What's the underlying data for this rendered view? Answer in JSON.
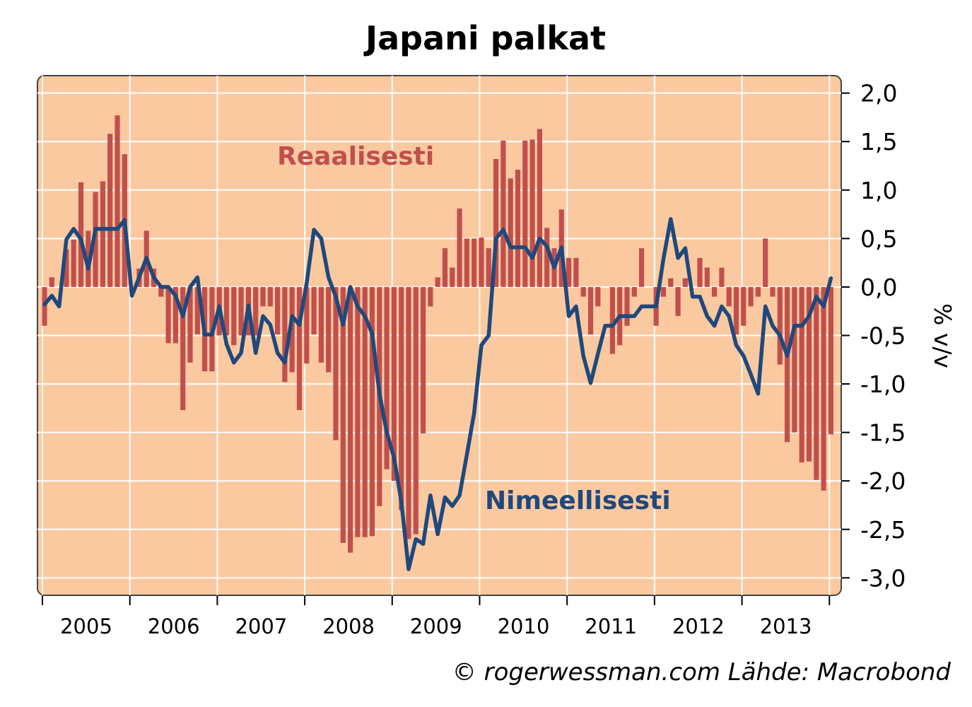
{
  "chart_data": {
    "type": "bar+line",
    "title": "Japani palkat",
    "ylabel": "% v/v",
    "xlabel": "",
    "ylim": [
      -3.18,
      2.18
    ],
    "yticks": [
      2.0,
      1.5,
      1.0,
      0.5,
      0.0,
      -0.5,
      -1.0,
      -1.5,
      -2.0,
      -2.5,
      -3.0
    ],
    "ytick_labels": [
      "2,0",
      "1,5",
      "1,0",
      "0,5",
      "0,0",
      "-0,5",
      "-1,0",
      "-1,5",
      "-2,0",
      "-2,5",
      "-3,0"
    ],
    "xtick_labels": [
      "2005",
      "2006",
      "2007",
      "2008",
      "2009",
      "2010",
      "2011",
      "2012",
      "2013"
    ],
    "grid": true,
    "x_start": "2005-01",
    "x_frequency": "monthly",
    "series": [
      {
        "name": "Reaalisesti",
        "type": "bar",
        "color": "#c0504d",
        "values": [
          -0.4,
          0.1,
          0,
          0.39,
          0.49,
          1.08,
          0.58,
          0.98,
          1.09,
          1.58,
          1.77,
          1.37,
          0,
          0.19,
          0.58,
          0.19,
          -0.1,
          -0.58,
          -0.58,
          -1.27,
          -0.78,
          -0.49,
          -0.87,
          -0.87,
          -0.5,
          -0.5,
          -0.6,
          -0.5,
          -0.5,
          -0.5,
          -0.2,
          -0.2,
          -0.49,
          -0.98,
          -0.88,
          -1.27,
          -0.79,
          -0.49,
          -0.78,
          -0.88,
          -1.58,
          -2.64,
          -2.74,
          -2.58,
          -2.58,
          -2.57,
          -2.26,
          -1.88,
          -2.0,
          -2.3,
          -2.6,
          -2.55,
          -1.51,
          -0.2,
          0.1,
          0.4,
          0.2,
          0.81,
          0.5,
          0.5,
          0.51,
          0.4,
          1.32,
          1.51,
          1.12,
          1.21,
          1.51,
          1.52,
          1.63,
          0.61,
          0.4,
          0.8,
          0.3,
          0.3,
          -0.1,
          -0.49,
          -0.2,
          0,
          -0.69,
          -0.6,
          -0.4,
          -0.1,
          0.4,
          0,
          -0.4,
          -0.1,
          0.09,
          -0.3,
          0.09,
          0,
          0.3,
          0.2,
          -0.1,
          0.2,
          -0.2,
          -0.49,
          -0.4,
          -0.2,
          -0.1,
          0.5,
          -0.1,
          -0.8,
          -1.6,
          -1.5,
          -1.81,
          -1.8,
          -1.99,
          -2.1,
          -1.52
        ]
      },
      {
        "name": "Nimeellisesti",
        "type": "line",
        "color": "#1f497d",
        "values": [
          -0.18,
          -0.09,
          -0.2,
          0.49,
          0.6,
          0.49,
          0.19,
          0.6,
          0.6,
          0.6,
          0.6,
          0.69,
          -0.09,
          0.1,
          0.3,
          0.1,
          0,
          0,
          -0.09,
          -0.3,
          0,
          0.1,
          -0.49,
          -0.49,
          -0.2,
          -0.59,
          -0.78,
          -0.68,
          -0.19,
          -0.68,
          -0.3,
          -0.39,
          -0.68,
          -0.78,
          -0.3,
          -0.39,
          0.04,
          0.59,
          0.5,
          0.1,
          -0.1,
          -0.39,
          0,
          -0.2,
          -0.3,
          -0.48,
          -1.1,
          -1.5,
          -1.76,
          -2.21,
          -2.91,
          -2.6,
          -2.65,
          -2.15,
          -2.55,
          -2.17,
          -2.26,
          -2.15,
          -1.73,
          -1.3,
          -0.6,
          -0.5,
          0.5,
          0.59,
          0.41,
          0.41,
          0.41,
          0.3,
          0.5,
          0.42,
          0.2,
          0.41,
          -0.3,
          -0.2,
          -0.71,
          -0.99,
          -0.69,
          -0.4,
          -0.4,
          -0.3,
          -0.3,
          -0.3,
          -0.2,
          -0.2,
          -0.2,
          0.29,
          0.7,
          0.3,
          0.4,
          -0.1,
          -0.1,
          -0.3,
          -0.4,
          -0.2,
          -0.3,
          -0.6,
          -0.71,
          -0.9,
          -1.1,
          -0.2,
          -0.4,
          -0.5,
          -0.71,
          -0.4,
          -0.4,
          -0.3,
          -0.1,
          -0.2,
          0.09
        ]
      }
    ],
    "plot_background": "#fbc9a0",
    "credit": "© rogerwessman.com Lähde: Macrobond"
  }
}
